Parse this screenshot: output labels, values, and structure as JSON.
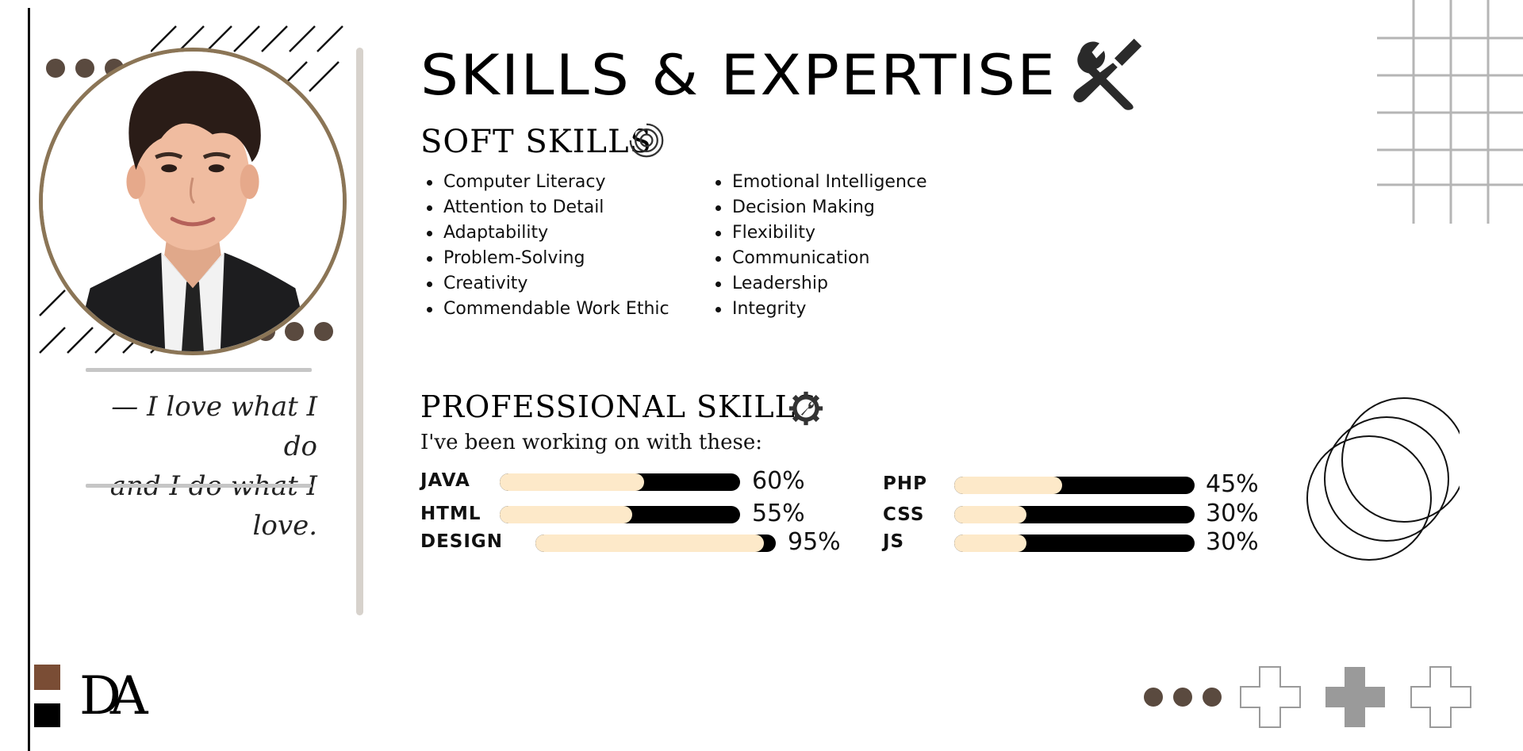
{
  "title": "SKILLS & EXPERTISE",
  "soft_skills": {
    "heading": "SOFT SKILLS",
    "column_1": [
      "Computer Literacy",
      "Attention to Detail",
      "Adaptability",
      "Problem-Solving",
      "Creativity",
      "Commendable Work Ethic"
    ],
    "column_2": [
      "Emotional Intelligence",
      "Decision Making",
      "Flexibility",
      "Communication",
      "Leadership",
      "Integrity"
    ]
  },
  "professional_skills": {
    "heading": "PROFESSIONAL SKILLS",
    "subtitle": "I've been working on with these:",
    "skills": [
      {
        "label": "JAVA",
        "percent_text": "60%",
        "value": 0.6
      },
      {
        "label": "HTML",
        "percent_text": "55%",
        "value": 0.55
      },
      {
        "label": "DESIGN",
        "percent_text": "95%",
        "value": 0.95
      },
      {
        "label": "PHP",
        "percent_text": "45%",
        "value": 0.45
      },
      {
        "label": "CSS",
        "percent_text": "30%",
        "value": 0.3
      },
      {
        "label": "JS",
        "percent_text": "30%",
        "value": 0.3
      }
    ]
  },
  "quote": {
    "line_1": "— I love what I do",
    "line_2": "and I do what I love."
  },
  "logo": {
    "text": "DA"
  },
  "icons": {
    "title_icon": "tools-icon",
    "soft_icon": "target-icon",
    "prof_icon": "gear-wrench-icon"
  },
  "colors": {
    "accent_brown": "#5a4a3f",
    "ring": "#8b7556",
    "bar_fill": "#fde9c9",
    "bar_track": "#000000",
    "logo_brown": "#7a4d35"
  }
}
